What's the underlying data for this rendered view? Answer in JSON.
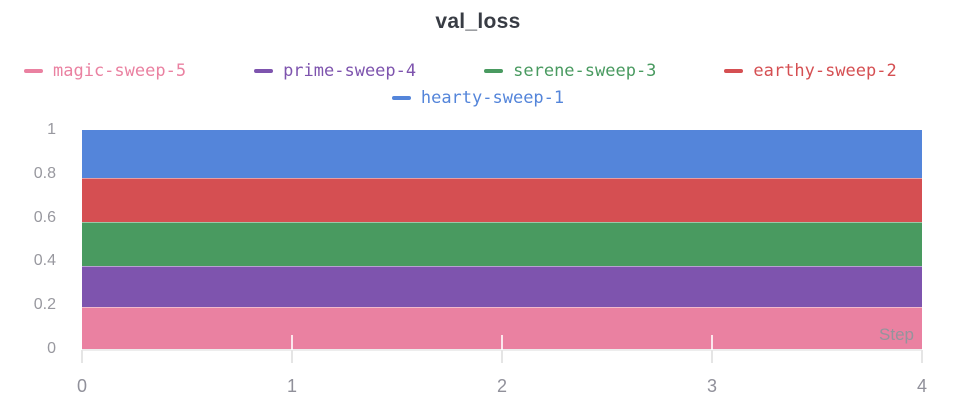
{
  "chart": {
    "title": "val_loss"
  },
  "legend": {
    "items": [
      {
        "label": "magic-sweep-5",
        "color": "#ea81a1"
      },
      {
        "label": "prime-sweep-4",
        "color": "#7e54ae"
      },
      {
        "label": "serene-sweep-3",
        "color": "#499a60"
      },
      {
        "label": "earthy-sweep-2",
        "color": "#d54f52"
      },
      {
        "label": "hearty-sweep-1",
        "color": "#5485da"
      }
    ]
  },
  "chart_data": {
    "type": "area",
    "title": "val_loss",
    "xlabel": "Step",
    "ylabel": "",
    "x": [
      0,
      1,
      2,
      3,
      4
    ],
    "series": [
      {
        "name": "hearty-sweep-1",
        "color": "#5485da",
        "values": [
          1.0,
          1.0,
          1.0,
          1.0,
          1.0
        ]
      },
      {
        "name": "earthy-sweep-2",
        "color": "#d54f52",
        "values": [
          0.78,
          0.78,
          0.78,
          0.78,
          0.78
        ]
      },
      {
        "name": "serene-sweep-3",
        "color": "#499a60",
        "values": [
          0.58,
          0.58,
          0.58,
          0.58,
          0.58
        ]
      },
      {
        "name": "prime-sweep-4",
        "color": "#7e54ae",
        "values": [
          0.38,
          0.38,
          0.38,
          0.38,
          0.38
        ]
      },
      {
        "name": "magic-sweep-5",
        "color": "#ea81a1",
        "values": [
          0.19,
          0.19,
          0.19,
          0.19,
          0.19
        ]
      }
    ],
    "xlim": [
      0,
      4
    ],
    "ylim": [
      0,
      1
    ],
    "yticks": [
      {
        "v": 0,
        "label": "0"
      },
      {
        "v": 0.2,
        "label": "0.2"
      },
      {
        "v": 0.4,
        "label": "0.4"
      },
      {
        "v": 0.6,
        "label": "0.6"
      },
      {
        "v": 0.8,
        "label": "0.8"
      },
      {
        "v": 1,
        "label": "1"
      }
    ],
    "xticks": [
      {
        "v": 0,
        "label": "0"
      },
      {
        "v": 1,
        "label": "1"
      },
      {
        "v": 2,
        "label": "2"
      },
      {
        "v": 3,
        "label": "3"
      },
      {
        "v": 4,
        "label": "4"
      }
    ],
    "grid": false,
    "legend_position": "top",
    "render_note": "overlapping constant-value areas filled to zero; smaller values drawn on top"
  }
}
